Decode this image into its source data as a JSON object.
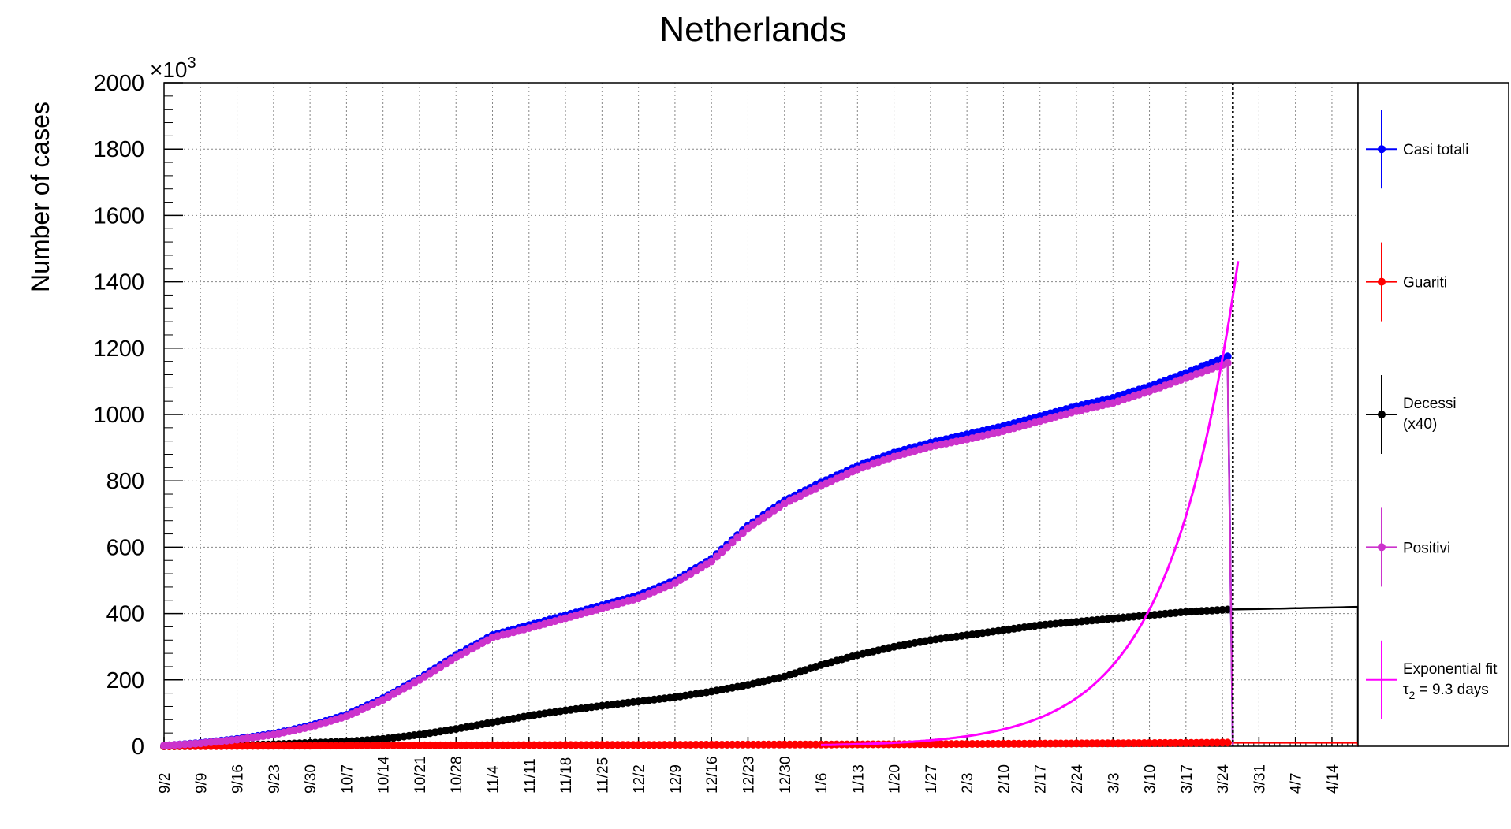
{
  "chart_data": {
    "type": "line",
    "title": "Netherlands",
    "ylabel": "Number of cases",
    "y_multiplier": {
      "base": "×10",
      "exp": "3"
    },
    "ylim": [
      0,
      2000
    ],
    "yticks": [
      0,
      200,
      400,
      600,
      800,
      1000,
      1200,
      1400,
      1600,
      1800,
      2000
    ],
    "x_start_date": "9/2",
    "x_end_day": 229,
    "xticks": [
      "9/2",
      "9/9",
      "9/16",
      "9/23",
      "9/30",
      "10/7",
      "10/14",
      "10/21",
      "10/28",
      "11/4",
      "11/11",
      "11/18",
      "11/25",
      "12/2",
      "12/9",
      "12/16",
      "12/23",
      "12/30",
      "1/6",
      "1/13",
      "1/20",
      "1/27",
      "2/3",
      "2/10",
      "2/17",
      "2/24",
      "3/3",
      "3/10",
      "3/17",
      "3/24",
      "3/31",
      "4/7",
      "4/14"
    ],
    "grid": true,
    "legend_position": "right",
    "marker_step_days": 1,
    "series": [
      {
        "name": "Casi totali",
        "color": "#0000ff",
        "marker": "circle",
        "x": [
          0,
          7,
          14,
          21,
          28,
          35,
          42,
          49,
          56,
          63,
          70,
          77,
          84,
          91,
          98,
          105,
          112,
          119,
          126,
          133,
          140,
          147,
          154,
          161,
          168,
          175,
          182,
          189,
          196,
          204
        ],
        "y": [
          2,
          10,
          22,
          38,
          62,
          95,
          145,
          205,
          275,
          335,
          365,
          395,
          425,
          455,
          500,
          565,
          665,
          740,
          795,
          845,
          885,
          915,
          940,
          965,
          995,
          1025,
          1050,
          1085,
          1125,
          1175
        ],
        "drop_to_zero_at": 205
      },
      {
        "name": "Guariti",
        "color": "#ff0000",
        "marker": "circle",
        "x": [
          0,
          28,
          56,
          84,
          112,
          140,
          168,
          196,
          204,
          229
        ],
        "y": [
          0,
          2,
          3,
          4,
          5,
          6,
          8,
          10,
          11,
          11
        ],
        "drop_to_zero_at": 229
      },
      {
        "name": "Decessi",
        "name2": "(x40)",
        "color": "#000000",
        "marker": "circle",
        "x": [
          0,
          7,
          14,
          21,
          28,
          35,
          42,
          49,
          56,
          63,
          70,
          77,
          84,
          91,
          98,
          105,
          112,
          119,
          126,
          133,
          140,
          147,
          154,
          161,
          168,
          175,
          182,
          189,
          196,
          204,
          229
        ],
        "y": [
          0,
          1,
          3,
          6,
          10,
          14,
          22,
          35,
          52,
          72,
          92,
          108,
          122,
          135,
          148,
          165,
          185,
          210,
          245,
          275,
          300,
          320,
          335,
          350,
          365,
          375,
          385,
          395,
          405,
          412,
          420
        ],
        "drop_to_zero_at": 229
      },
      {
        "name": "Positivi",
        "color": "#cc33cc",
        "marker": "circle",
        "x": [
          0,
          7,
          14,
          21,
          28,
          35,
          42,
          49,
          56,
          63,
          70,
          77,
          84,
          91,
          98,
          105,
          112,
          119,
          126,
          133,
          140,
          147,
          154,
          161,
          168,
          175,
          182,
          189,
          196,
          204
        ],
        "y": [
          2,
          9,
          20,
          35,
          58,
          90,
          140,
          200,
          268,
          328,
          356,
          386,
          416,
          446,
          492,
          557,
          657,
          732,
          785,
          835,
          873,
          903,
          925,
          950,
          980,
          1010,
          1035,
          1070,
          1110,
          1155
        ],
        "drop_to_zero_at": 205
      },
      {
        "name": "Exponential fit",
        "name2": "τ",
        "name2_sub": "2",
        "name2_tail": " = 9.3 days",
        "color": "#ff00ff",
        "marker": "none",
        "fit_window": [
          126,
          206
        ],
        "amplitude_at_x204": 1260,
        "doubling_days": 9.3
      }
    ],
    "vlines": [
      {
        "x": 205,
        "color": "#000000",
        "style": "dotted"
      }
    ]
  }
}
